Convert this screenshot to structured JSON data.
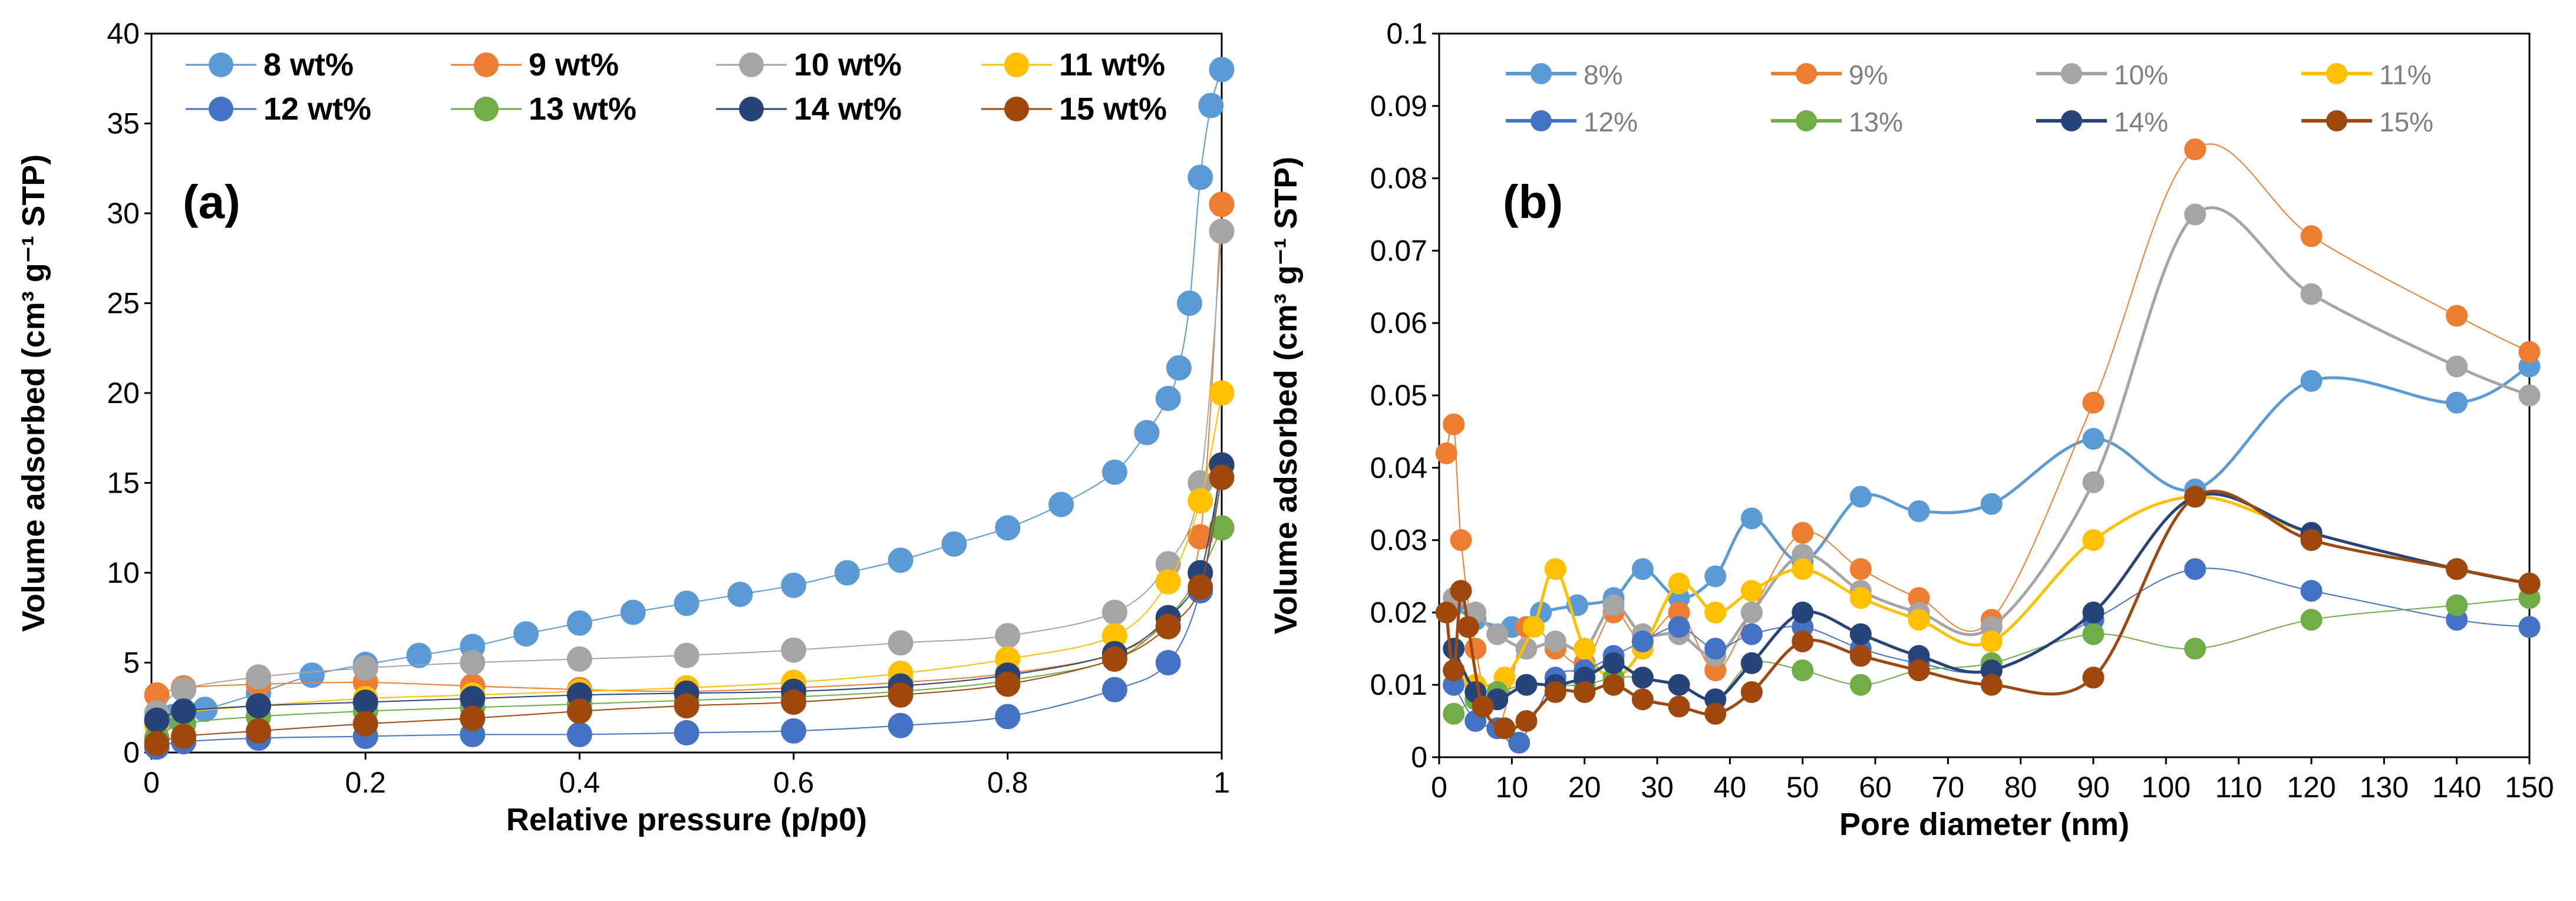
{
  "chart_data": [
    {
      "type": "scatter",
      "panel_label": "(a)",
      "xlabel": "Relative pressure (p/p0)",
      "ylabel": "Volume adsorbed (cm³ g⁻¹ STP)",
      "xlim": [
        0,
        1
      ],
      "ylim": [
        0,
        40
      ],
      "xticks": [
        0,
        0.2,
        0.4,
        0.6,
        0.8,
        1
      ],
      "xtick_labels": [
        "0",
        "0.2",
        "0.4",
        "0.6",
        "0.8",
        "1"
      ],
      "yticks": [
        0,
        5,
        10,
        15,
        20,
        25,
        30,
        35,
        40
      ],
      "ytick_labels": [
        "0",
        "5",
        "10",
        "15",
        "20",
        "25",
        "30",
        "35",
        "40"
      ],
      "legend_position": "top",
      "series": [
        {
          "name": "8 wt%",
          "color": "#5b9bd5",
          "x": [
            0.005,
            0.02,
            0.05,
            0.1,
            0.15,
            0.2,
            0.25,
            0.3,
            0.35,
            0.4,
            0.45,
            0.5,
            0.55,
            0.6,
            0.65,
            0.7,
            0.75,
            0.8,
            0.85,
            0.9,
            0.93,
            0.95,
            0.96,
            0.97,
            0.98,
            0.99,
            1.0
          ],
          "y": [
            1.8,
            2.0,
            2.4,
            3.3,
            4.3,
            4.9,
            5.4,
            5.9,
            6.6,
            7.2,
            7.8,
            8.3,
            8.8,
            9.3,
            10.0,
            10.7,
            11.6,
            12.5,
            13.8,
            15.6,
            17.8,
            19.7,
            21.4,
            25.0,
            32.0,
            36.0,
            38.0
          ]
        },
        {
          "name": "9 wt%",
          "color": "#ed7d31",
          "x": [
            0.005,
            0.03,
            0.1,
            0.2,
            0.3,
            0.4,
            0.5,
            0.6,
            0.7,
            0.8,
            0.9,
            0.95,
            0.98,
            1.0
          ],
          "y": [
            3.2,
            3.6,
            3.8,
            3.9,
            3.7,
            3.5,
            3.4,
            3.6,
            3.9,
            4.4,
            5.5,
            7.5,
            12.0,
            30.5
          ]
        },
        {
          "name": "10 wt%",
          "color": "#a5a5a5",
          "x": [
            0.005,
            0.03,
            0.1,
            0.2,
            0.3,
            0.4,
            0.5,
            0.6,
            0.7,
            0.8,
            0.9,
            0.95,
            0.98,
            1.0
          ],
          "y": [
            2.2,
            3.5,
            4.2,
            4.7,
            5.0,
            5.2,
            5.4,
            5.7,
            6.1,
            6.5,
            7.8,
            10.5,
            15.0,
            29.0
          ]
        },
        {
          "name": "11 wt%",
          "color": "#ffc000",
          "x": [
            0.005,
            0.03,
            0.1,
            0.2,
            0.3,
            0.4,
            0.5,
            0.6,
            0.7,
            0.8,
            0.9,
            0.95,
            0.98,
            1.0
          ],
          "y": [
            1.5,
            2.2,
            2.6,
            3.0,
            3.2,
            3.4,
            3.6,
            3.9,
            4.4,
            5.2,
            6.5,
            9.5,
            14.0,
            20.0
          ]
        },
        {
          "name": "12 wt%",
          "color": "#4472c4",
          "x": [
            0.005,
            0.03,
            0.1,
            0.2,
            0.3,
            0.4,
            0.5,
            0.6,
            0.7,
            0.8,
            0.9,
            0.95,
            0.98,
            1.0
          ],
          "y": [
            0.3,
            0.6,
            0.8,
            0.9,
            1.0,
            1.0,
            1.1,
            1.2,
            1.5,
            2.0,
            3.5,
            5.0,
            9.0,
            16.0
          ]
        },
        {
          "name": "13 wt%",
          "color": "#70ad47",
          "x": [
            0.005,
            0.03,
            0.1,
            0.2,
            0.3,
            0.4,
            0.5,
            0.6,
            0.7,
            0.8,
            0.9,
            0.95,
            0.98,
            1.0
          ],
          "y": [
            0.8,
            1.6,
            2.0,
            2.3,
            2.5,
            2.7,
            2.9,
            3.1,
            3.4,
            4.0,
            5.2,
            7.5,
            10.0,
            12.5
          ]
        },
        {
          "name": "14 wt%",
          "color": "#264478",
          "x": [
            0.005,
            0.03,
            0.1,
            0.2,
            0.3,
            0.4,
            0.5,
            0.6,
            0.7,
            0.8,
            0.9,
            0.95,
            0.98,
            1.0
          ],
          "y": [
            1.8,
            2.3,
            2.6,
            2.8,
            3.0,
            3.2,
            3.3,
            3.4,
            3.7,
            4.3,
            5.5,
            7.5,
            10.0,
            16.0
          ]
        },
        {
          "name": "15 wt%",
          "color": "#9e480e",
          "x": [
            0.005,
            0.03,
            0.1,
            0.2,
            0.3,
            0.4,
            0.5,
            0.6,
            0.7,
            0.8,
            0.9,
            0.95,
            0.98,
            1.0
          ],
          "y": [
            0.5,
            0.9,
            1.2,
            1.6,
            1.9,
            2.3,
            2.6,
            2.8,
            3.2,
            3.8,
            5.2,
            7.0,
            9.2,
            15.3
          ]
        }
      ]
    },
    {
      "type": "line",
      "panel_label": "(b)",
      "xlabel": "Pore diameter (nm)",
      "ylabel": "Volume adsorbed (cm³ g⁻¹ STP)",
      "xlim": [
        0,
        150
      ],
      "ylim": [
        0,
        0.1
      ],
      "xticks": [
        0,
        10,
        20,
        30,
        40,
        50,
        60,
        70,
        80,
        90,
        100,
        110,
        120,
        130,
        140,
        150
      ],
      "xtick_labels": [
        "0",
        "10",
        "20",
        "30",
        "40",
        "50",
        "60",
        "70",
        "80",
        "90",
        "100",
        "110",
        "120",
        "130",
        "140",
        "150"
      ],
      "yticks": [
        0,
        0.01,
        0.02,
        0.03,
        0.04,
        0.05,
        0.06,
        0.07,
        0.08,
        0.09,
        0.1
      ],
      "ytick_labels": [
        "0",
        "0.01",
        "0.02",
        "0.03",
        "0.04",
        "0.05",
        "0.06",
        "0.07",
        "0.08",
        "0.09",
        "0.1"
      ],
      "legend_position": "top",
      "series": [
        {
          "name": "8%",
          "color": "#5b9bd5",
          "x": [
            2,
            5,
            10,
            14,
            19,
            24,
            28,
            33,
            38,
            43,
            50,
            58,
            66,
            76,
            90,
            104,
            120,
            140,
            150
          ],
          "y": [
            0.021,
            0.019,
            0.018,
            0.02,
            0.021,
            0.022,
            0.026,
            0.022,
            0.025,
            0.033,
            0.027,
            0.036,
            0.034,
            0.035,
            0.044,
            0.037,
            0.052,
            0.049,
            0.054
          ]
        },
        {
          "name": "9%",
          "color": "#ed7d31",
          "x": [
            1,
            2,
            3,
            5,
            8,
            12,
            16,
            20,
            24,
            28,
            33,
            38,
            43,
            50,
            58,
            66,
            76,
            90,
            104,
            120,
            140,
            150
          ],
          "y": [
            0.042,
            0.046,
            0.03,
            0.015,
            0.004,
            0.018,
            0.015,
            0.013,
            0.02,
            0.016,
            0.02,
            0.012,
            0.02,
            0.031,
            0.026,
            0.022,
            0.019,
            0.049,
            0.084,
            0.072,
            0.061,
            0.056
          ]
        },
        {
          "name": "10%",
          "color": "#a5a5a5",
          "x": [
            2,
            5,
            8,
            12,
            16,
            20,
            24,
            28,
            33,
            38,
            43,
            50,
            58,
            66,
            76,
            90,
            104,
            120,
            140,
            150
          ],
          "y": [
            0.022,
            0.02,
            0.017,
            0.015,
            0.016,
            0.015,
            0.021,
            0.017,
            0.017,
            0.014,
            0.02,
            0.028,
            0.023,
            0.02,
            0.018,
            0.038,
            0.075,
            0.064,
            0.054,
            0.05
          ]
        },
        {
          "name": "11%",
          "color": "#ffc000",
          "x": [
            2,
            5,
            9,
            13,
            16,
            20,
            24,
            28,
            33,
            38,
            43,
            50,
            58,
            66,
            76,
            90,
            104,
            120,
            140,
            150
          ],
          "y": [
            0.012,
            0.01,
            0.011,
            0.018,
            0.026,
            0.015,
            0.011,
            0.015,
            0.024,
            0.02,
            0.023,
            0.026,
            0.022,
            0.019,
            0.016,
            0.03,
            0.036,
            0.031,
            0.026,
            0.024
          ]
        },
        {
          "name": "12%",
          "color": "#4472c4",
          "x": [
            2,
            5,
            8,
            11,
            16,
            20,
            24,
            28,
            33,
            38,
            43,
            50,
            58,
            66,
            76,
            90,
            104,
            120,
            140,
            150
          ],
          "y": [
            0.01,
            0.005,
            0.004,
            0.002,
            0.011,
            0.012,
            0.014,
            0.016,
            0.018,
            0.015,
            0.017,
            0.018,
            0.015,
            0.013,
            0.012,
            0.019,
            0.026,
            0.023,
            0.019,
            0.018
          ]
        },
        {
          "name": "13%",
          "color": "#70ad47",
          "x": [
            2,
            5,
            8,
            12,
            16,
            20,
            24,
            28,
            33,
            38,
            43,
            50,
            58,
            66,
            76,
            90,
            104,
            120,
            140,
            150
          ],
          "y": [
            0.006,
            0.008,
            0.009,
            0.01,
            0.01,
            0.01,
            0.011,
            0.011,
            0.01,
            0.008,
            0.013,
            0.012,
            0.01,
            0.012,
            0.013,
            0.017,
            0.015,
            0.019,
            0.021,
            0.022
          ]
        },
        {
          "name": "14%",
          "color": "#264478",
          "x": [
            2,
            5,
            8,
            12,
            16,
            20,
            24,
            28,
            33,
            38,
            43,
            50,
            58,
            66,
            76,
            90,
            104,
            120,
            140,
            150
          ],
          "y": [
            0.015,
            0.009,
            0.008,
            0.01,
            0.01,
            0.011,
            0.013,
            0.011,
            0.01,
            0.008,
            0.013,
            0.02,
            0.017,
            0.014,
            0.012,
            0.02,
            0.036,
            0.031,
            0.026,
            0.024
          ]
        },
        {
          "name": "15%",
          "color": "#9e480e",
          "x": [
            1,
            2,
            3,
            4,
            6,
            9,
            12,
            16,
            20,
            24,
            28,
            33,
            38,
            43,
            50,
            58,
            66,
            76,
            90,
            104,
            120,
            140,
            150
          ],
          "y": [
            0.02,
            0.012,
            0.023,
            0.018,
            0.007,
            0.004,
            0.005,
            0.009,
            0.009,
            0.01,
            0.008,
            0.007,
            0.006,
            0.009,
            0.016,
            0.014,
            0.012,
            0.01,
            0.011,
            0.036,
            0.03,
            0.026,
            0.024
          ]
        }
      ]
    }
  ]
}
